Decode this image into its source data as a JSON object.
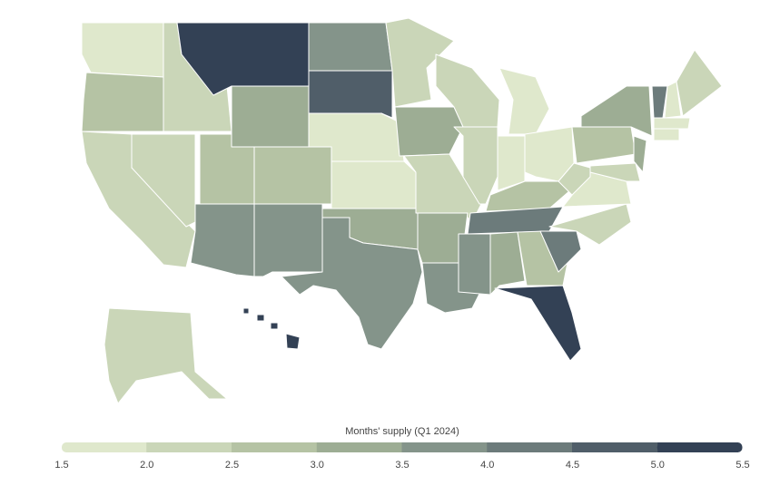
{
  "map": {
    "type": "choropleth",
    "legend_title": "Months' supply (Q1 2024)",
    "ticks": [
      1.5,
      {
        "value": 2,
        "label": "2.0"
      },
      2.5,
      {
        "value": 3,
        "label": "3.0"
      },
      3.5,
      {
        "value": 4,
        "label": "4.0"
      },
      4.5,
      {
        "value": 5,
        "label": "5.0"
      },
      5.5
    ],
    "colors": [
      "#dfe8cc",
      "#cad6b8",
      "#b5c3a4",
      "#9dad94",
      "#84948a",
      "#6c7b7b",
      "#505e69",
      "#334155"
    ],
    "values": [
      1.7,
      2.6,
      2.3,
      2.3,
      2.3,
      5.3,
      3.3,
      2.7,
      2.8,
      3.6,
      3.5,
      3.6,
      4.6,
      1.8,
      1.9,
      3.2,
      3.9,
      2.2,
      3.1,
      2.3,
      3.4,
      3.8,
      2.2,
      2.3,
      1.9,
      1.9,
      1.9,
      2.6,
      4.1,
      3.9,
      3.3,
      2.8,
      5.2,
      4.2,
      2.4,
      1.7,
      2.1,
      2.5,
      3.3,
      3.3,
      2.4,
      4.0,
      1.8,
      2.2,
      1.9,
      1.8,
      2.3,
      5.0
    ]
  }
}
